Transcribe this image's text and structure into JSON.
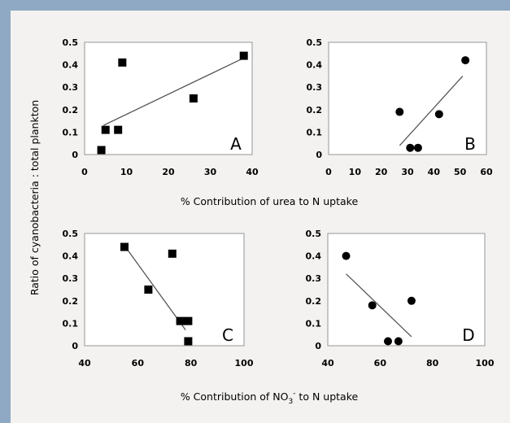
{
  "figure": {
    "ylabel": "Ratio of cyanobacteria : total plankton",
    "top_xlabel": "% Contribution of urea to N uptake",
    "bottom_xlabel_pre": "% Contribution of NO",
    "bottom_xlabel_sub": "3",
    "bottom_xlabel_sup": "-",
    "bottom_xlabel_post": " to N uptake",
    "colors": {
      "background": "#8fa9c4",
      "panel": "#f3f2f0",
      "marker": "#000000",
      "line": "#555555"
    }
  },
  "chart_data": [
    {
      "type": "scatter",
      "panel_label": "A",
      "marker": "square",
      "xlim": [
        0,
        40
      ],
      "ylim": [
        0,
        0.5
      ],
      "xticks": [
        "0",
        "10",
        "20",
        "30",
        "40"
      ],
      "yticks": [
        "0",
        "0.1",
        "0.2",
        "0.3",
        "0.4",
        "0.5"
      ],
      "x": [
        4,
        5,
        8,
        9,
        26,
        38
      ],
      "y": [
        0.02,
        0.11,
        0.11,
        0.41,
        0.25,
        0.44
      ],
      "trendline": {
        "x": [
          4.5,
          38
        ],
        "y": [
          0.13,
          0.43
        ]
      }
    },
    {
      "type": "scatter",
      "panel_label": "B",
      "marker": "circle",
      "xlim": [
        0,
        60
      ],
      "ylim": [
        0,
        0.5
      ],
      "xticks": [
        "0",
        "10",
        "20",
        "30",
        "40",
        "50",
        "60"
      ],
      "yticks": [
        "0",
        "0.1",
        "0.2",
        "0.3",
        "0.4",
        "0.5"
      ],
      "x": [
        27,
        31,
        34,
        42,
        52
      ],
      "y": [
        0.19,
        0.03,
        0.03,
        0.18,
        0.42
      ],
      "trendline": {
        "x": [
          27,
          51
        ],
        "y": [
          0.04,
          0.35
        ]
      }
    },
    {
      "type": "scatter",
      "panel_label": "C",
      "marker": "square",
      "xlim": [
        40,
        100
      ],
      "ylim": [
        0,
        0.5
      ],
      "xticks": [
        "40",
        "60",
        "80",
        "100"
      ],
      "yticks": [
        "0",
        "0.1",
        "0.2",
        "0.3",
        "0.4",
        "0.5"
      ],
      "x": [
        55,
        64,
        73,
        76,
        79,
        79
      ],
      "y": [
        0.44,
        0.25,
        0.41,
        0.11,
        0.11,
        0.02
      ],
      "trendline": {
        "x": [
          56,
          78
        ],
        "y": [
          0.43,
          0.07
        ]
      }
    },
    {
      "type": "scatter",
      "panel_label": "D",
      "marker": "circle",
      "xlim": [
        40,
        100
      ],
      "ylim": [
        0,
        0.5
      ],
      "xticks": [
        "40",
        "60",
        "80",
        "100"
      ],
      "yticks": [
        "0",
        "0.1",
        "0.2",
        "0.3",
        "0.4",
        "0.5"
      ],
      "x": [
        47,
        57,
        63,
        67,
        72
      ],
      "y": [
        0.4,
        0.18,
        0.02,
        0.02,
        0.2
      ],
      "trendline": {
        "x": [
          47,
          72
        ],
        "y": [
          0.32,
          0.04
        ]
      }
    }
  ]
}
